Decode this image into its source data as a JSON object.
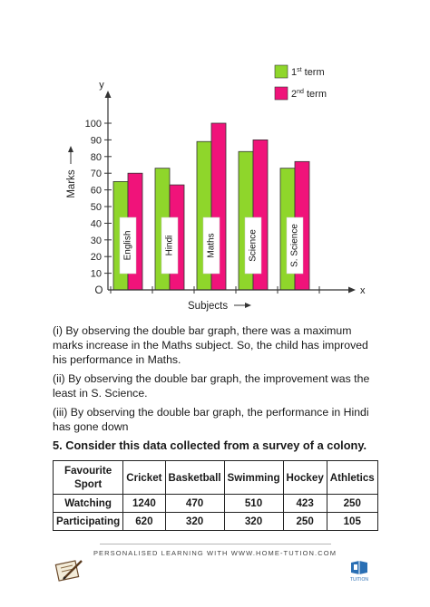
{
  "chart_data": {
    "type": "bar",
    "categories": [
      "English",
      "Hindi",
      "Maths",
      "Science",
      "S. Science"
    ],
    "series": [
      {
        "name": "1st term",
        "values": [
          65,
          73,
          89,
          83,
          73
        ],
        "color": "#8fd62b"
      },
      {
        "name": "2nd term",
        "values": [
          70,
          63,
          100,
          90,
          77
        ],
        "color": "#f0137a"
      }
    ],
    "legend": [
      {
        "base": "1",
        "sup": "st",
        "rest": " term"
      },
      {
        "base": "2",
        "sup": "nd",
        "rest": " term"
      }
    ],
    "xlabel": "Subjects",
    "ylabel": "Marks",
    "x_axis_name": "x",
    "y_axis_name": "y",
    "origin_label": "O",
    "yticks": [
      10,
      20,
      30,
      40,
      50,
      60,
      70,
      80,
      90,
      100
    ],
    "ylim": [
      0,
      100
    ],
    "grid": false,
    "legend_position": "top-right"
  },
  "answers": [
    "(i) By observing the double bar graph, there was a maximum marks increase in the Maths subject. So, the child has improved his performance in Maths.",
    "(ii) By observing the double bar graph, the improvement was the least in S. Science.",
    "(iii) By observing the double bar graph, the performance in Hindi has gone down"
  ],
  "question5": "5. Consider this data collected from a survey of a colony.",
  "table": {
    "headers": [
      "Favourite Sport",
      "Cricket",
      "Basketball",
      "Swimming",
      "Hockey",
      "Athletics"
    ],
    "rows": [
      [
        "Watching",
        "1240",
        "470",
        "510",
        "423",
        "250"
      ],
      [
        "Participating",
        "620",
        "320",
        "320",
        "250",
        "105"
      ]
    ]
  },
  "footer": "PERSONALISED LEARNING WITH WWW.HOME-TUTION.COM",
  "footer_logo_text": "TUITION"
}
